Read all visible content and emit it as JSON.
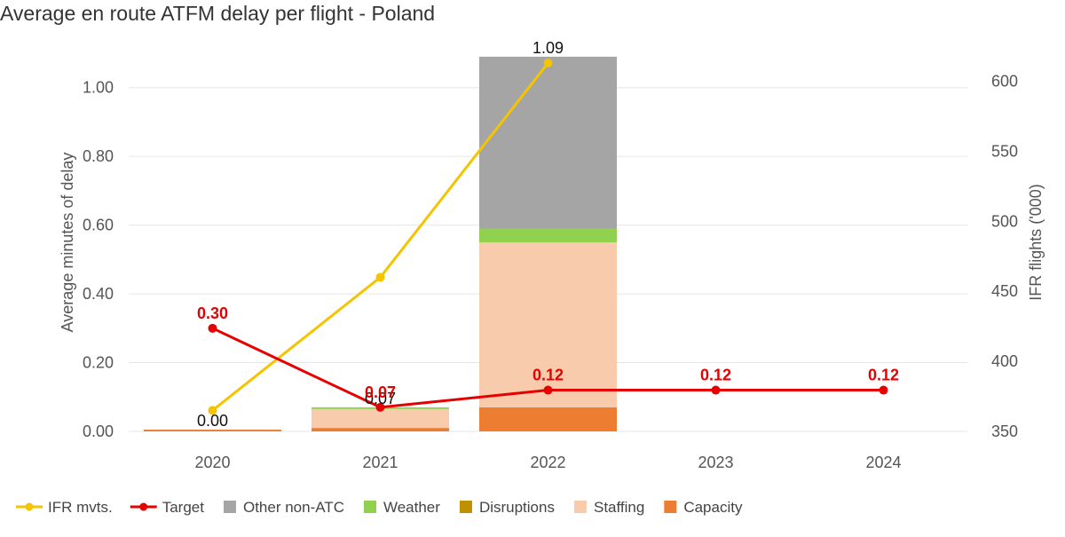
{
  "chart_data": {
    "type": "bar",
    "title": "Average en route ATFM delay per flight - Poland",
    "ylabel": "Average minutes of delay",
    "y2label": "IFR flights ('000)",
    "categories": [
      "2020",
      "2021",
      "2022",
      "2023",
      "2024"
    ],
    "ylim": [
      0,
      1.1
    ],
    "y2lim": [
      350,
      620
    ],
    "yticks": [
      "0.00",
      "0.20",
      "0.40",
      "0.60",
      "0.80",
      "1.00"
    ],
    "y2ticks": [
      "350",
      "400",
      "450",
      "500",
      "550",
      "600"
    ],
    "stacked_series": [
      {
        "name": "Capacity",
        "color": "#ed7d31",
        "values": [
          0.005,
          0.01,
          0.07,
          null,
          null
        ]
      },
      {
        "name": "Disruptions",
        "color": "#bf9000",
        "values": [
          0,
          0,
          0,
          null,
          null
        ]
      },
      {
        "name": "Staffing",
        "color": "#f8cbad",
        "values": [
          0,
          0.055,
          0.48,
          null,
          null
        ]
      },
      {
        "name": "Weather",
        "color": "#92d050",
        "values": [
          0,
          0.005,
          0.04,
          null,
          null
        ]
      },
      {
        "name": "Other non-ATC",
        "color": "#a5a5a5",
        "values": [
          0,
          0,
          0.5,
          null,
          null
        ]
      }
    ],
    "bar_total_labels": [
      "0.00",
      "0.07",
      "1.09",
      "",
      ""
    ],
    "target": {
      "name": "Target",
      "color": "#e60000",
      "values": [
        0.3,
        0.07,
        0.12,
        0.12,
        0.12
      ],
      "labels": [
        "0.30",
        "0.07",
        "0.12",
        "0.12",
        "0.12"
      ]
    },
    "ifr_mvts": {
      "name": "IFR mvts.",
      "color": "#f5c400",
      "values": [
        365,
        460,
        613,
        null,
        null
      ]
    },
    "legend": [
      "IFR mvts.",
      "Target",
      "Other non-ATC",
      "Weather",
      "Disruptions",
      "Staffing",
      "Capacity"
    ],
    "legend_placement": "bottom-left",
    "grid": true
  }
}
